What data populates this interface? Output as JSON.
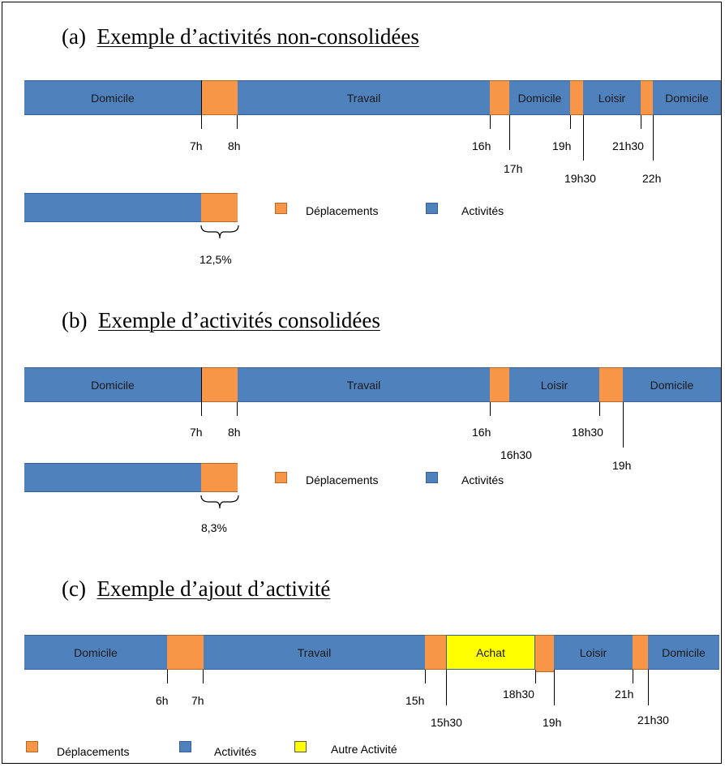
{
  "section_a": {
    "heading_prefix": "(a)",
    "heading_title": "Exemple d’activités non-consolidées",
    "segments": [
      "Domicile",
      "",
      "Travail",
      "",
      "Domicile",
      "",
      "Loisir",
      "",
      "Domicile"
    ],
    "times": [
      "7h",
      "8h",
      "16h",
      "17h",
      "19h",
      "19h30",
      "21h30",
      "22h"
    ],
    "summary_percent": "12,5%",
    "legend": {
      "deplacements": "Déplacements",
      "activites": "Activités"
    }
  },
  "section_b": {
    "heading_prefix": "(b)",
    "heading_title": "Exemple d’activités consolidées",
    "segments": [
      "Domicile",
      "",
      "Travail",
      "",
      "Loisir",
      "",
      "Domicile"
    ],
    "times": [
      "7h",
      "8h",
      "16h",
      "16h30",
      "18h30",
      "19h"
    ],
    "summary_percent": "8,3%",
    "legend": {
      "deplacements": "Déplacements",
      "activites": "Activités"
    }
  },
  "section_c": {
    "heading_prefix": "(c)",
    "heading_title": "Exemple d’ajout d’activité",
    "segments": [
      "Domicile",
      "",
      "Travail",
      "",
      "Achat",
      "",
      "Loisir",
      "",
      "Domicile"
    ],
    "times": [
      "6h",
      "7h",
      "15h",
      "15h30",
      "18h30",
      "19h",
      "21h",
      "21h30"
    ],
    "legend": {
      "deplacements": "Déplacements",
      "activites": "Activités",
      "autre": "Autre  Activité"
    }
  },
  "colors": {
    "activite": "#4f81bd",
    "deplacement": "#f79646",
    "autre_activite": "#ffff00"
  }
}
